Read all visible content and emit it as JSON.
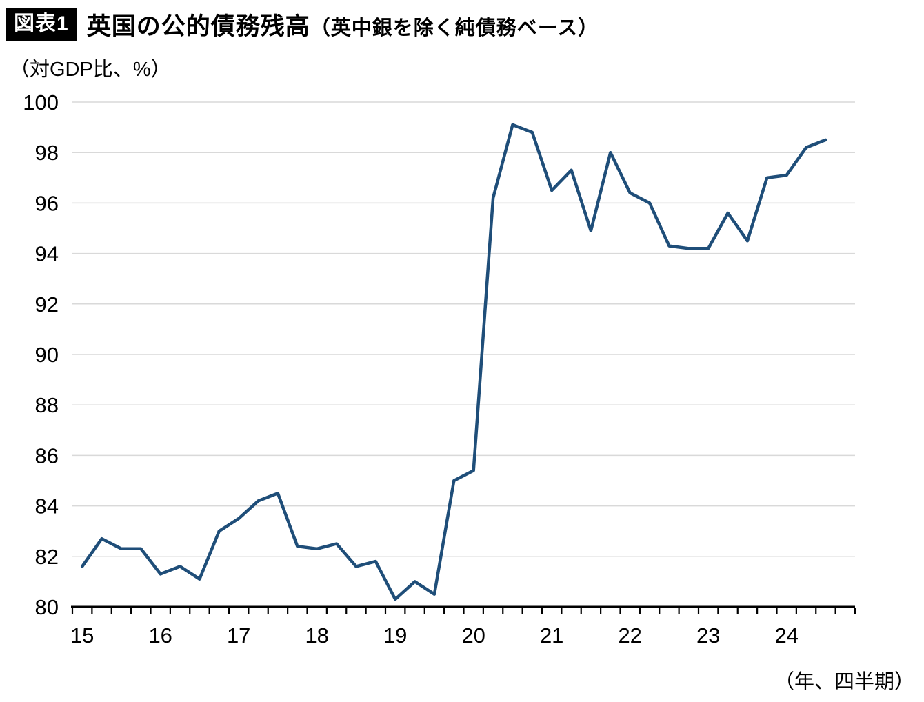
{
  "figure": {
    "badge": "図表1",
    "title_main": "英国の公的債務残高",
    "title_note": "（英中銀を除く純債務ベース）",
    "y_unit_label": "（対GDP比、%）",
    "x_unit_label": "（年、四半期）"
  },
  "chart_data": {
    "type": "line",
    "title": "英国の公的債務残高（英中銀を除く純債務ベース）",
    "ylabel": "（対GDP比、%）",
    "xlabel": "（年、四半期）",
    "ylim": [
      80,
      100
    ],
    "ytick_step": 2,
    "grid": true,
    "legend": "none",
    "line_color": "#1f4e79",
    "grid_color": "#d9d9d9",
    "axis_color": "#000000",
    "x_tick_labels": [
      "15",
      "16",
      "17",
      "18",
      "19",
      "20",
      "21",
      "22",
      "23",
      "24"
    ],
    "categories": [
      "15Q1",
      "15Q2",
      "15Q3",
      "15Q4",
      "16Q1",
      "16Q2",
      "16Q3",
      "16Q4",
      "17Q1",
      "17Q2",
      "17Q3",
      "17Q4",
      "18Q1",
      "18Q2",
      "18Q3",
      "18Q4",
      "19Q1",
      "19Q2",
      "19Q3",
      "19Q4",
      "20Q1",
      "20Q2",
      "20Q3",
      "20Q4",
      "21Q1",
      "21Q2",
      "21Q3",
      "21Q4",
      "22Q1",
      "22Q2",
      "22Q3",
      "22Q4",
      "23Q1",
      "23Q2",
      "23Q3",
      "23Q4",
      "24Q1",
      "24Q2",
      "24Q3"
    ],
    "series": [
      {
        "name": "英国の公的債務残高（対GDP比、%）",
        "values": [
          81.6,
          82.7,
          82.3,
          82.3,
          81.3,
          81.6,
          81.1,
          83.0,
          83.5,
          84.2,
          84.5,
          82.4,
          82.3,
          82.5,
          81.6,
          81.8,
          80.3,
          81.0,
          80.5,
          85.0,
          85.4,
          96.2,
          99.1,
          98.8,
          96.5,
          97.3,
          94.9,
          98.0,
          96.4,
          96.0,
          94.3,
          94.2,
          94.2,
          95.6,
          94.5,
          97.0,
          97.1,
          98.2,
          98.5
        ]
      }
    ]
  }
}
